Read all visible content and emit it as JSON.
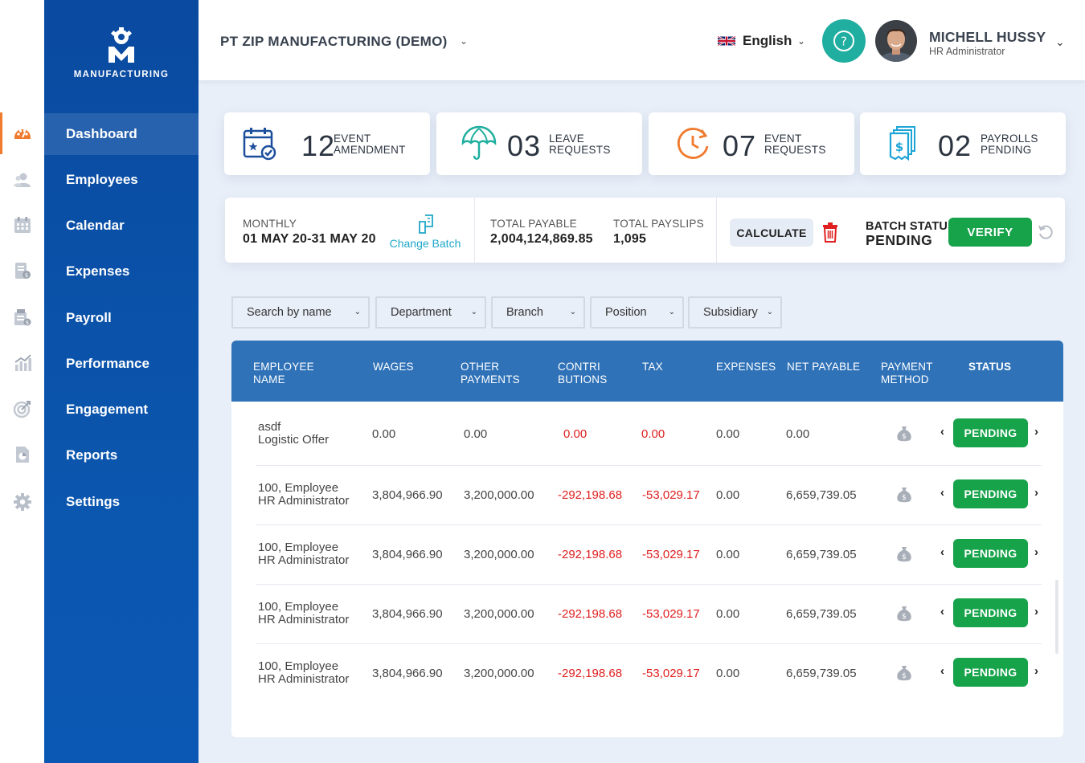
{
  "logo": {
    "text": "MANUFACTURING"
  },
  "rail_icons": [
    "dashboard-icon",
    "employees-icon",
    "calendar-icon",
    "expenses-icon",
    "payroll-icon",
    "performance-icon",
    "engagement-icon",
    "reports-icon",
    "settings-icon"
  ],
  "nav": {
    "items": [
      {
        "label": "Dashboard",
        "active": true
      },
      {
        "label": "Employees"
      },
      {
        "label": "Calendar"
      },
      {
        "label": "Expenses"
      },
      {
        "label": "Payroll"
      },
      {
        "label": "Performance"
      },
      {
        "label": "Engagement"
      },
      {
        "label": "Reports"
      },
      {
        "label": "Settings"
      }
    ]
  },
  "header": {
    "company": "PT ZIP MANUFACTURING (DEMO)",
    "language": "English",
    "user_name": "MICHELL HUSSY",
    "user_role": "HR Administrator"
  },
  "stats": [
    {
      "value": "12",
      "label1": "EVENT",
      "label2": "AMENDMENT",
      "icon": "calendar-check-icon",
      "color": "#1b4f9c"
    },
    {
      "value": "03",
      "label1": "LEAVE",
      "label2": "REQUESTS",
      "icon": "umbrella-icon",
      "color": "#1fae9f"
    },
    {
      "value": "07",
      "label1": "EVENT",
      "label2": "REQUESTS",
      "icon": "clock-icon",
      "color": "#f07b2e"
    },
    {
      "value": "02",
      "label1": "PAYROLLS",
      "label2": "PENDING",
      "icon": "invoice-icon",
      "color": "#1ea5d6"
    }
  ],
  "batch": {
    "period_label": "MONTHLY",
    "period_value": "01 MAY 20-31 MAY 20",
    "change_batch": "Change Batch",
    "total_payable_label": "TOTAL PAYABLE",
    "total_payable_value": "2,004,124,869.85",
    "total_payslips_label": "TOTAL PAYSLIPS",
    "total_payslips_value": "1,095",
    "calculate": "CALCULATE",
    "status_label": "BATCH STATUS",
    "status_value": "PENDING",
    "verify": "VERIFY"
  },
  "filters": [
    "Search by name",
    "Department",
    "Branch",
    "Position",
    "Subsidiary"
  ],
  "table": {
    "headers": [
      [
        "EMPLOYEE",
        "NAME"
      ],
      [
        "WAGES",
        ""
      ],
      [
        "OTHER",
        "PAYMENTS"
      ],
      [
        "CONTRI",
        "BUTIONS"
      ],
      [
        "TAX",
        ""
      ],
      [
        "EXPENSES",
        ""
      ],
      [
        "NET PAYABLE",
        ""
      ],
      [
        "PAYMENT",
        "METHOD"
      ],
      [
        "STATUS",
        ""
      ]
    ],
    "rows": [
      {
        "name": "asdf",
        "sub": "Logistic Offer",
        "wages": "0.00",
        "other": "0.00",
        "contrib": "0.00",
        "tax": "0.00",
        "expenses": "0.00",
        "net": "0.00",
        "status": "PENDING"
      },
      {
        "name": "100, Employee",
        "sub": "HR Administrator",
        "wages": "3,804,966.90",
        "other": "3,200,000.00",
        "contrib": "-292,198.68",
        "tax": "-53,029.17",
        "expenses": "0.00",
        "net": "6,659,739.05",
        "status": "PENDING"
      },
      {
        "name": "100, Employee",
        "sub": "HR Administrator",
        "wages": "3,804,966.90",
        "other": "3,200,000.00",
        "contrib": "-292,198.68",
        "tax": "-53,029.17",
        "expenses": "0.00",
        "net": "6,659,739.05",
        "status": "PENDING"
      },
      {
        "name": "100, Employee",
        "sub": "HR Administrator",
        "wages": "3,804,966.90",
        "other": "3,200,000.00",
        "contrib": "-292,198.68",
        "tax": "-53,029.17",
        "expenses": "0.00",
        "net": "6,659,739.05",
        "status": "PENDING"
      },
      {
        "name": "100, Employee",
        "sub": "HR Administrator",
        "wages": "3,804,966.90",
        "other": "3,200,000.00",
        "contrib": "-292,198.68",
        "tax": "-53,029.17",
        "expenses": "0.00",
        "net": "6,659,739.05",
        "status": "PENDING"
      }
    ]
  }
}
